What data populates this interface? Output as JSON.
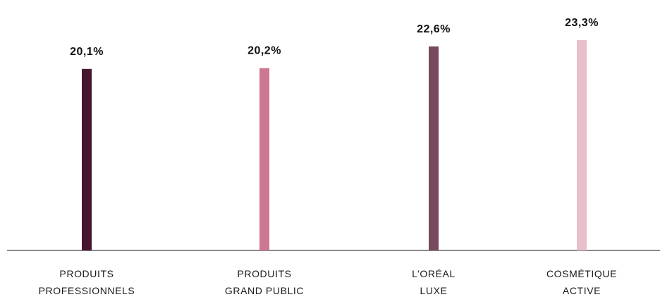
{
  "chart_data": {
    "type": "bar",
    "categories": [
      {
        "lines": [
          "PRODUITS",
          "PROFESSIONNELS"
        ]
      },
      {
        "lines": [
          "PRODUITS",
          "GRAND PUBLIC"
        ]
      },
      {
        "lines": [
          "L’ORÉAL",
          "LUXE"
        ]
      },
      {
        "lines": [
          "COSMÉTIQUE",
          "ACTIVE"
        ]
      }
    ],
    "values": [
      20.1,
      20.2,
      22.6,
      23.3
    ],
    "value_labels": [
      "20,1%",
      "20,2%",
      "22,6%",
      "23,3%"
    ],
    "colors": [
      "#45162e",
      "#cc7890",
      "#774a5d",
      "#e9bfcb"
    ],
    "ylim": [
      0,
      24.3
    ],
    "grid": false,
    "legend": "none"
  }
}
